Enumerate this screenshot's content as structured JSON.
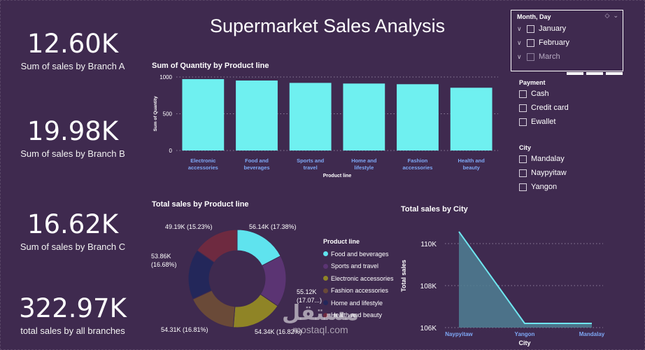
{
  "kpis": {
    "branch_a": {
      "value": "12.60K",
      "label": "Sum of sales by Branch A"
    },
    "branch_b": {
      "value": "19.98K",
      "label": "Sum of sales by Branch B"
    },
    "branch_c": {
      "value": "16.62K",
      "label": "Sum of sales by Branch C"
    },
    "total": {
      "value": "322.97K",
      "label": "total sales by all branches"
    }
  },
  "title": "Supermarket Sales Analysis",
  "slicers": {
    "month": {
      "header": "Month, Day",
      "items": [
        {
          "label": "January",
          "state": "collapsed"
        },
        {
          "label": "February",
          "state": "collapsed"
        },
        {
          "label": "March",
          "state": "dim"
        }
      ]
    },
    "payment": {
      "header": "Payment",
      "options": [
        "Cash",
        "Credit card",
        "Ewallet"
      ]
    },
    "city": {
      "header": "City",
      "options": [
        "Mandalay",
        "Naypyitaw",
        "Yangon"
      ]
    }
  },
  "watermark": {
    "arabic": "مستقل",
    "latin": "mostaql.com"
  },
  "colors": {
    "background": "#3f2a4f",
    "bar": "#6ff0f0",
    "area_line": "#6fe6f0",
    "area_fill": "#4f7f93"
  },
  "chart_data": [
    {
      "type": "bar",
      "title": "Sum of Quantity by Product line",
      "xlabel": "Product line",
      "ylabel": "Sum of Quantity",
      "categories": [
        "Electronic accessories",
        "Food and beverages",
        "Sports and travel",
        "Home and lifestyle",
        "Fashion accessories",
        "Health and beauty"
      ],
      "category_lines": [
        [
          "Electronic",
          "accessories"
        ],
        [
          "Food and",
          "beverages"
        ],
        [
          "Sports and",
          "travel"
        ],
        [
          "Home and",
          "lifestyle"
        ],
        [
          "Fashion",
          "accessories"
        ],
        [
          "Health and",
          "beauty"
        ]
      ],
      "values": [
        971,
        952,
        920,
        911,
        902,
        854
      ],
      "yticks": [
        "0",
        "500",
        "1000"
      ],
      "ylim": [
        0,
        1000
      ],
      "grid": true
    },
    {
      "type": "pie",
      "title": "Total sales by Product line",
      "legend_title": "Product line",
      "legend_position": "right",
      "slices": [
        {
          "name": "Food and beverages",
          "value": 56.14,
          "label": "56.14K (17.38%)",
          "color": "#5fe3ee"
        },
        {
          "name": "Sports and travel",
          "value": 55.12,
          "label": "55.12K (17.07...)",
          "color": "#5b3473"
        },
        {
          "name": "Electronic accessories",
          "value": 54.34,
          "label": "54.34K (16.82%)",
          "color": "#8f8426"
        },
        {
          "name": "Fashion accessories",
          "value": 54.31,
          "label": "54.31K (16.81%)",
          "color": "#6a4a38"
        },
        {
          "name": "Home and lifestyle",
          "value": 53.86,
          "label": "53.86K (16.68%)",
          "color": "#23275a"
        },
        {
          "name": "Health and beauty",
          "value": 49.19,
          "label": "49.19K (15.23%)",
          "color": "#6e2a40"
        }
      ]
    },
    {
      "type": "area",
      "title": "Total sales by City",
      "xlabel": "City",
      "ylabel": "Total sales",
      "categories": [
        "Naypyitaw",
        "Yangon",
        "Mandalay"
      ],
      "values": [
        110568,
        106200,
        106198
      ],
      "yticks": [
        {
          "value": 106000,
          "label": "106K"
        },
        {
          "value": 108000,
          "label": "108K"
        },
        {
          "value": 110000,
          "label": "110K"
        }
      ],
      "ylim": [
        106000,
        110800
      ],
      "grid": true
    }
  ]
}
